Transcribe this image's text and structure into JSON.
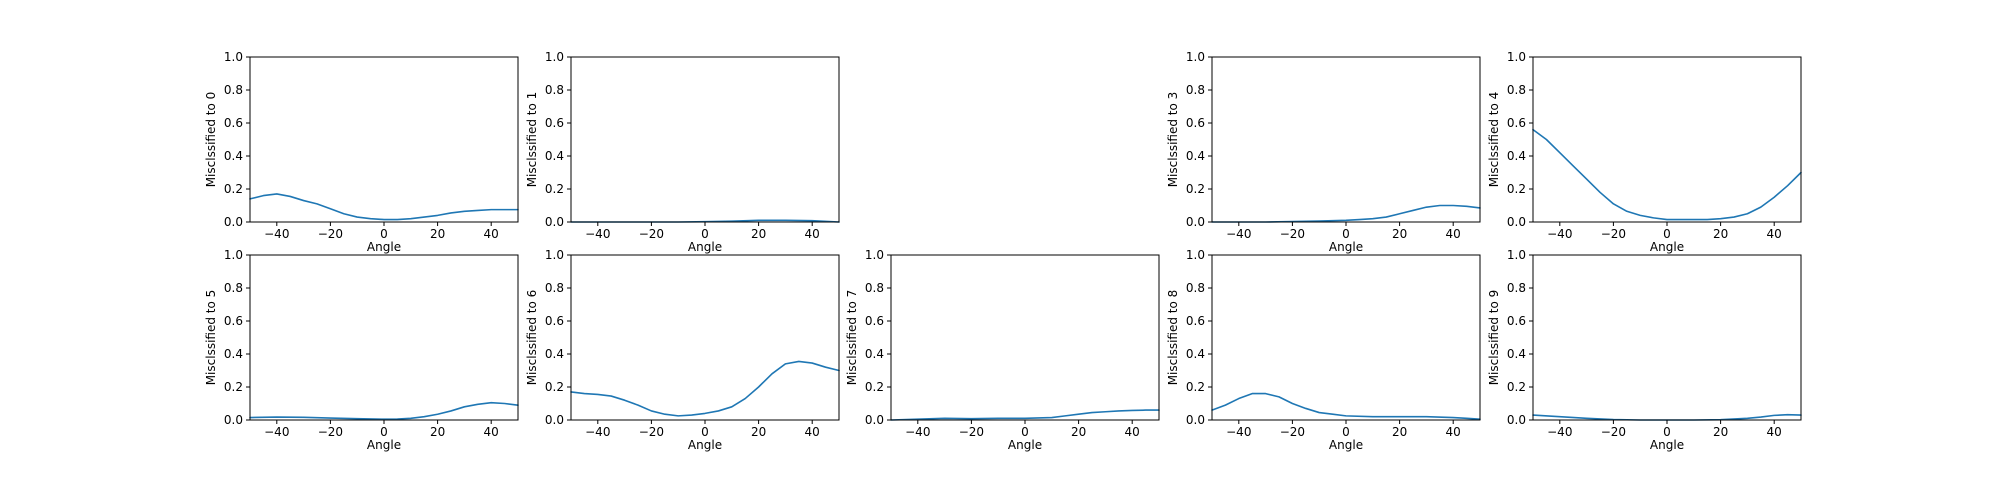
{
  "chart_data": [
    {
      "type": "line",
      "row": 0,
      "col": 0,
      "xlabel": "Angle",
      "ylabel": "Misclssified to 0",
      "xlim": [
        -50,
        50
      ],
      "ylim": [
        0,
        1
      ],
      "xticks": [
        -40,
        -20,
        0,
        20,
        40
      ],
      "yticks": [
        0.0,
        0.2,
        0.4,
        0.6,
        0.8,
        1.0
      ],
      "color": "#1f77b4",
      "x": [
        -50,
        -45,
        -40,
        -35,
        -30,
        -25,
        -20,
        -15,
        -10,
        -5,
        0,
        5,
        10,
        15,
        20,
        25,
        30,
        35,
        40,
        45,
        50
      ],
      "y": [
        0.14,
        0.16,
        0.17,
        0.155,
        0.13,
        0.11,
        0.08,
        0.05,
        0.03,
        0.02,
        0.015,
        0.015,
        0.02,
        0.03,
        0.04,
        0.055,
        0.065,
        0.07,
        0.075,
        0.075,
        0.075
      ]
    },
    {
      "type": "line",
      "row": 0,
      "col": 1,
      "xlabel": "Angle",
      "ylabel": "Misclssified to 1",
      "xlim": [
        -50,
        50
      ],
      "ylim": [
        0,
        1
      ],
      "xticks": [
        -40,
        -20,
        0,
        20,
        40
      ],
      "yticks": [
        0.0,
        0.2,
        0.4,
        0.6,
        0.8,
        1.0
      ],
      "color": "#1f77b4",
      "x": [
        -50,
        -40,
        -30,
        -20,
        -10,
        0,
        10,
        20,
        30,
        40,
        50
      ],
      "y": [
        0.0,
        0.0,
        0.0,
        0.0,
        0.0,
        0.002,
        0.005,
        0.01,
        0.01,
        0.008,
        0.0
      ]
    },
    {
      "type": "line",
      "row": 0,
      "col": 3,
      "xlabel": "Angle",
      "ylabel": "Misclssified to 3",
      "xlim": [
        -50,
        50
      ],
      "ylim": [
        0,
        1
      ],
      "xticks": [
        -40,
        -20,
        0,
        20,
        40
      ],
      "yticks": [
        0.0,
        0.2,
        0.4,
        0.6,
        0.8,
        1.0
      ],
      "color": "#1f77b4",
      "x": [
        -50,
        -40,
        -30,
        -20,
        -10,
        0,
        5,
        10,
        15,
        20,
        25,
        30,
        35,
        40,
        45,
        50
      ],
      "y": [
        0.0,
        0.0,
        0.0,
        0.003,
        0.006,
        0.01,
        0.015,
        0.02,
        0.03,
        0.05,
        0.07,
        0.09,
        0.1,
        0.1,
        0.095,
        0.085
      ]
    },
    {
      "type": "line",
      "row": 0,
      "col": 4,
      "xlabel": "Angle",
      "ylabel": "Misclssified to 4",
      "xlim": [
        -50,
        50
      ],
      "ylim": [
        0,
        1
      ],
      "xticks": [
        -40,
        -20,
        0,
        20,
        40
      ],
      "yticks": [
        0.0,
        0.2,
        0.4,
        0.6,
        0.8,
        1.0
      ],
      "color": "#1f77b4",
      "x": [
        -50,
        -45,
        -40,
        -35,
        -30,
        -25,
        -20,
        -15,
        -10,
        -5,
        0,
        5,
        10,
        15,
        20,
        25,
        30,
        35,
        40,
        45,
        50
      ],
      "y": [
        0.56,
        0.5,
        0.42,
        0.34,
        0.26,
        0.18,
        0.11,
        0.065,
        0.04,
        0.025,
        0.015,
        0.015,
        0.015,
        0.015,
        0.02,
        0.03,
        0.05,
        0.09,
        0.15,
        0.22,
        0.3
      ]
    },
    {
      "type": "line",
      "row": 1,
      "col": 0,
      "xlabel": "Angle",
      "ylabel": "Misclssified to 5",
      "xlim": [
        -50,
        50
      ],
      "ylim": [
        0,
        1
      ],
      "xticks": [
        -40,
        -20,
        0,
        20,
        40
      ],
      "yticks": [
        0.0,
        0.2,
        0.4,
        0.6,
        0.8,
        1.0
      ],
      "color": "#1f77b4",
      "x": [
        -50,
        -40,
        -30,
        -20,
        -10,
        0,
        5,
        10,
        15,
        20,
        25,
        30,
        35,
        40,
        45,
        50
      ],
      "y": [
        0.015,
        0.018,
        0.016,
        0.012,
        0.008,
        0.005,
        0.006,
        0.01,
        0.02,
        0.035,
        0.055,
        0.08,
        0.095,
        0.105,
        0.1,
        0.09
      ]
    },
    {
      "type": "line",
      "row": 1,
      "col": 1,
      "xlabel": "Angle",
      "ylabel": "Misclssified to 6",
      "xlim": [
        -50,
        50
      ],
      "ylim": [
        0,
        1
      ],
      "xticks": [
        -40,
        -20,
        0,
        20,
        40
      ],
      "yticks": [
        0.0,
        0.2,
        0.4,
        0.6,
        0.8,
        1.0
      ],
      "color": "#1f77b4",
      "x": [
        -50,
        -45,
        -40,
        -35,
        -30,
        -25,
        -20,
        -15,
        -10,
        -5,
        0,
        5,
        10,
        15,
        20,
        25,
        30,
        35,
        40,
        45,
        50
      ],
      "y": [
        0.17,
        0.16,
        0.155,
        0.145,
        0.12,
        0.09,
        0.055,
        0.035,
        0.025,
        0.03,
        0.04,
        0.055,
        0.08,
        0.13,
        0.2,
        0.28,
        0.34,
        0.355,
        0.345,
        0.32,
        0.3
      ]
    },
    {
      "type": "line",
      "row": 1,
      "col": 2,
      "xlabel": "Angle",
      "ylabel": "Misclssified to 7",
      "xlim": [
        -50,
        50
      ],
      "ylim": [
        0,
        1
      ],
      "xticks": [
        -40,
        -20,
        0,
        20,
        40
      ],
      "yticks": [
        0.0,
        0.2,
        0.4,
        0.6,
        0.8,
        1.0
      ],
      "color": "#1f77b4",
      "x": [
        -50,
        -40,
        -30,
        -20,
        -10,
        0,
        10,
        15,
        20,
        25,
        30,
        35,
        40,
        45,
        50
      ],
      "y": [
        0.0,
        0.005,
        0.01,
        0.008,
        0.01,
        0.01,
        0.015,
        0.025,
        0.035,
        0.045,
        0.05,
        0.055,
        0.058,
        0.06,
        0.06
      ]
    },
    {
      "type": "line",
      "row": 1,
      "col": 3,
      "xlabel": "Angle",
      "ylabel": "Misclssified to 8",
      "xlim": [
        -50,
        50
      ],
      "ylim": [
        0,
        1
      ],
      "xticks": [
        -40,
        -20,
        0,
        20,
        40
      ],
      "yticks": [
        0.0,
        0.2,
        0.4,
        0.6,
        0.8,
        1.0
      ],
      "color": "#1f77b4",
      "x": [
        -50,
        -45,
        -40,
        -35,
        -30,
        -25,
        -20,
        -15,
        -10,
        -5,
        0,
        10,
        20,
        30,
        40,
        45,
        50
      ],
      "y": [
        0.06,
        0.09,
        0.13,
        0.16,
        0.16,
        0.14,
        0.1,
        0.07,
        0.045,
        0.035,
        0.025,
        0.02,
        0.02,
        0.02,
        0.015,
        0.01,
        0.005
      ]
    },
    {
      "type": "line",
      "row": 1,
      "col": 4,
      "xlabel": "Angle",
      "ylabel": "Misclssified to 9",
      "xlim": [
        -50,
        50
      ],
      "ylim": [
        0,
        1
      ],
      "xticks": [
        -40,
        -20,
        0,
        20,
        40
      ],
      "yticks": [
        0.0,
        0.2,
        0.4,
        0.6,
        0.8,
        1.0
      ],
      "color": "#1f77b4",
      "x": [
        -50,
        -40,
        -30,
        -20,
        -10,
        0,
        10,
        20,
        30,
        35,
        40,
        45,
        50
      ],
      "y": [
        0.03,
        0.02,
        0.01,
        0.003,
        0.0,
        0.0,
        0.0,
        0.002,
        0.01,
        0.018,
        0.028,
        0.032,
        0.03
      ]
    }
  ]
}
